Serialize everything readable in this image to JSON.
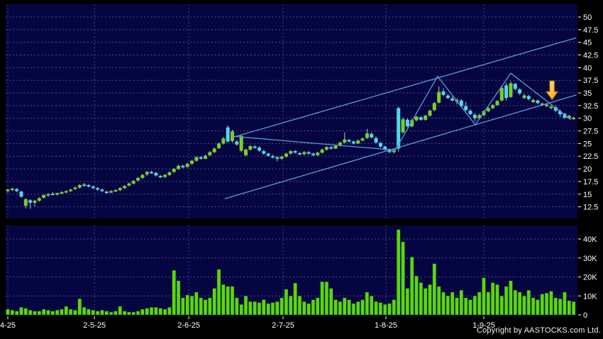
{
  "meta": {
    "copyright": "Copyright by AASTOCKS.com Ltd.",
    "description": "Daily candlestick chart with volume sub-chart"
  },
  "colors": {
    "page_bg": "#000000",
    "panel_bg": "#050542",
    "grid": "#50508c",
    "month_grid": "#45457d",
    "candle_up": "#7ccf23",
    "candle_down": "#4fd8ea",
    "wick": "#c4c4c4",
    "volume_bar": "#5fd414",
    "volume_bar_edge": "#0a4a00",
    "trend_line": "#5b9bd5",
    "axis_text": "#ffffff",
    "arrow_fill_light": "#ffe97a",
    "arrow_fill_dark": "#f09818",
    "arrow_outline": "#7a4a00"
  },
  "chart_data": {
    "type": "candlestick_with_volume",
    "title": "",
    "x_axis": {
      "ticks": [
        {
          "label": "4-25",
          "index": 0
        },
        {
          "label": "2-5-25",
          "index": 19.3
        },
        {
          "label": "2-6-25",
          "index": 40.3
        },
        {
          "label": "2-7-25",
          "index": 61.3
        },
        {
          "label": "1-8-25",
          "index": 84.2
        },
        {
          "label": "1-9-25",
          "index": 106.0
        }
      ]
    },
    "price_axis": {
      "min": 12.5,
      "max": 50,
      "step": 2.5,
      "labels": [
        "50",
        "47.5",
        "45",
        "42.5",
        "40",
        "37.5",
        "35",
        "32.5",
        "30",
        "27.5",
        "25",
        "22.5",
        "20",
        "17.5",
        "15",
        "12.5"
      ]
    },
    "volume_axis": {
      "min": 0,
      "max": 40,
      "step": 10,
      "unit": "K",
      "labels": [
        "40K",
        "30K",
        "20K",
        "10K",
        "0"
      ]
    },
    "grid": "dashed",
    "candles": [
      [
        15.6,
        16.1,
        15.3,
        15.9,
        "g"
      ],
      [
        15.9,
        16.3,
        15.6,
        16.1,
        "g"
      ],
      [
        16.0,
        16.2,
        15.4,
        15.6,
        "c"
      ],
      [
        15.5,
        15.7,
        14.3,
        14.5,
        "c"
      ],
      [
        12.7,
        14.2,
        12.2,
        14.0,
        "g"
      ],
      [
        13.8,
        14.0,
        12.1,
        13.3,
        "c"
      ],
      [
        13.3,
        13.9,
        12.6,
        13.7,
        "g"
      ],
      [
        13.7,
        14.4,
        13.5,
        14.2,
        "g"
      ],
      [
        14.3,
        15.0,
        14.1,
        14.8,
        "g"
      ],
      [
        14.8,
        15.2,
        14.5,
        15.0,
        "g"
      ],
      [
        15.1,
        15.4,
        14.8,
        15.0,
        "c"
      ],
      [
        15.0,
        15.3,
        14.7,
        15.2,
        "g"
      ],
      [
        15.2,
        15.6,
        15.0,
        15.4,
        "g"
      ],
      [
        15.5,
        15.8,
        15.2,
        15.6,
        "g"
      ],
      [
        15.6,
        16.1,
        15.4,
        15.9,
        "g"
      ],
      [
        16.0,
        16.5,
        15.8,
        16.3,
        "g"
      ],
      [
        16.3,
        17.0,
        16.1,
        16.8,
        "g"
      ],
      [
        16.9,
        17.2,
        16.5,
        16.7,
        "c"
      ],
      [
        16.8,
        17.0,
        16.3,
        16.5,
        "c"
      ],
      [
        16.5,
        16.7,
        16.0,
        16.2,
        "c"
      ],
      [
        16.2,
        16.4,
        15.7,
        15.9,
        "c"
      ],
      [
        15.9,
        16.1,
        15.4,
        15.6,
        "c"
      ],
      [
        15.5,
        15.7,
        15.1,
        15.3,
        "c"
      ],
      [
        15.3,
        15.8,
        15.2,
        15.6,
        "g"
      ],
      [
        15.6,
        16.0,
        15.4,
        15.8,
        "g"
      ],
      [
        15.8,
        16.4,
        15.6,
        16.2,
        "g"
      ],
      [
        16.2,
        16.8,
        16.0,
        16.6,
        "g"
      ],
      [
        16.7,
        17.3,
        16.5,
        17.1,
        "g"
      ],
      [
        17.1,
        17.8,
        16.9,
        17.6,
        "g"
      ],
      [
        17.7,
        18.4,
        17.5,
        18.2,
        "g"
      ],
      [
        18.2,
        19.0,
        18.0,
        18.8,
        "g"
      ],
      [
        18.9,
        19.6,
        18.6,
        19.4,
        "g"
      ],
      [
        19.4,
        19.6,
        19.0,
        19.2,
        "c"
      ],
      [
        19.2,
        19.4,
        18.5,
        18.7,
        "c"
      ],
      [
        18.6,
        18.8,
        18.2,
        18.4,
        "c"
      ],
      [
        18.4,
        19.0,
        18.2,
        18.8,
        "g"
      ],
      [
        18.8,
        19.5,
        18.6,
        19.3,
        "g"
      ],
      [
        19.4,
        20.2,
        19.2,
        20.0,
        "g"
      ],
      [
        20.0,
        20.8,
        19.8,
        20.6,
        "g"
      ],
      [
        20.6,
        20.8,
        20.1,
        20.3,
        "c"
      ],
      [
        20.4,
        21.2,
        20.2,
        21.0,
        "g"
      ],
      [
        21.0,
        21.8,
        20.8,
        21.6,
        "g"
      ],
      [
        21.6,
        22.5,
        21.4,
        22.3,
        "g"
      ],
      [
        22.3,
        22.5,
        21.8,
        22.0,
        "c"
      ],
      [
        22.0,
        22.8,
        21.9,
        22.6,
        "g"
      ],
      [
        22.7,
        23.5,
        22.5,
        23.3,
        "g"
      ],
      [
        23.3,
        24.2,
        23.1,
        24.0,
        "g"
      ],
      [
        24.1,
        25.2,
        23.9,
        25.0,
        "g"
      ],
      [
        25.0,
        26.3,
        24.8,
        26.0,
        "g"
      ],
      [
        25.4,
        28.6,
        25.2,
        28.2,
        "c"
      ],
      [
        27.4,
        27.7,
        25.2,
        25.5,
        "g"
      ],
      [
        25.4,
        25.7,
        24.6,
        24.8,
        "c"
      ],
      [
        26.5,
        26.8,
        23.3,
        23.6,
        "g"
      ],
      [
        22.7,
        24.0,
        22.5,
        23.8,
        "g"
      ],
      [
        23.8,
        24.7,
        23.6,
        24.5,
        "g"
      ],
      [
        24.4,
        24.7,
        24.0,
        24.2,
        "c"
      ],
      [
        24.2,
        24.5,
        23.4,
        23.6,
        "c"
      ],
      [
        23.5,
        23.8,
        22.8,
        23.0,
        "c"
      ],
      [
        23.0,
        23.2,
        22.4,
        22.6,
        "c"
      ],
      [
        22.5,
        22.8,
        22.1,
        22.3,
        "c"
      ],
      [
        22.3,
        22.5,
        21.5,
        22.0,
        "c"
      ],
      [
        22.0,
        22.6,
        21.8,
        22.4,
        "g"
      ],
      [
        22.4,
        23.2,
        22.2,
        23.0,
        "g"
      ],
      [
        23.0,
        23.7,
        22.8,
        23.5,
        "g"
      ],
      [
        23.5,
        23.7,
        23.0,
        23.2,
        "c"
      ],
      [
        23.1,
        23.3,
        22.7,
        22.9,
        "c"
      ],
      [
        22.9,
        23.5,
        22.7,
        23.3,
        "g"
      ],
      [
        23.3,
        23.5,
        22.8,
        23.0,
        "c"
      ],
      [
        23.0,
        23.2,
        22.5,
        22.7,
        "c"
      ],
      [
        22.7,
        23.4,
        22.5,
        23.2,
        "g"
      ],
      [
        23.2,
        24.0,
        23.0,
        23.8,
        "g"
      ],
      [
        23.8,
        24.5,
        23.6,
        24.3,
        "g"
      ],
      [
        24.3,
        24.5,
        23.8,
        24.0,
        "c"
      ],
      [
        24.0,
        24.8,
        23.9,
        24.6,
        "g"
      ],
      [
        24.6,
        25.4,
        24.4,
        25.2,
        "g"
      ],
      [
        25.2,
        27.2,
        25.0,
        25.8,
        "g"
      ],
      [
        25.7,
        25.9,
        25.2,
        25.4,
        "c"
      ],
      [
        25.4,
        25.6,
        24.8,
        25.0,
        "c"
      ],
      [
        25.0,
        25.8,
        24.9,
        25.6,
        "g"
      ],
      [
        25.6,
        26.2,
        25.4,
        26.0,
        "g"
      ],
      [
        26.1,
        27.9,
        25.9,
        27.0,
        "g"
      ],
      [
        26.9,
        27.2,
        26.0,
        26.2,
        "c"
      ],
      [
        26.1,
        26.4,
        25.0,
        25.2,
        "c"
      ],
      [
        25.1,
        25.4,
        24.2,
        24.4,
        "c"
      ],
      [
        24.4,
        24.6,
        23.6,
        23.8,
        "c"
      ],
      [
        23.7,
        24.0,
        23.1,
        23.3,
        "c"
      ],
      [
        23.3,
        23.8,
        23.0,
        23.6,
        "g"
      ],
      [
        24.0,
        32.3,
        23.4,
        32.0,
        "c"
      ],
      [
        27.2,
        30.2,
        27.0,
        29.8,
        "g"
      ],
      [
        29.7,
        30.0,
        28.2,
        28.4,
        "c"
      ],
      [
        28.4,
        29.8,
        28.2,
        29.6,
        "g"
      ],
      [
        29.6,
        30.5,
        29.4,
        30.3,
        "g"
      ],
      [
        30.2,
        30.4,
        29.5,
        29.7,
        "c"
      ],
      [
        29.7,
        30.7,
        29.5,
        30.5,
        "g"
      ],
      [
        30.5,
        31.7,
        30.3,
        31.5,
        "g"
      ],
      [
        31.6,
        33.2,
        31.4,
        33.0,
        "g"
      ],
      [
        33.1,
        36.3,
        32.9,
        35.2,
        "g"
      ],
      [
        35.3,
        35.9,
        34.4,
        34.6,
        "c"
      ],
      [
        34.5,
        34.8,
        33.8,
        34.0,
        "c"
      ],
      [
        33.9,
        34.3,
        33.3,
        33.5,
        "c"
      ],
      [
        33.4,
        33.9,
        32.8,
        33.6,
        "g"
      ],
      [
        33.5,
        33.8,
        32.2,
        32.4,
        "c"
      ],
      [
        32.4,
        33.2,
        31.4,
        31.6,
        "c"
      ],
      [
        31.5,
        31.8,
        30.6,
        30.8,
        "c"
      ],
      [
        30.7,
        31.0,
        29.3,
        30.0,
        "c"
      ],
      [
        30.0,
        30.9,
        29.8,
        30.6,
        "g"
      ],
      [
        30.6,
        31.6,
        30.4,
        31.4,
        "g"
      ],
      [
        31.4,
        32.2,
        31.2,
        32.0,
        "g"
      ],
      [
        32.0,
        32.8,
        31.8,
        32.6,
        "g"
      ],
      [
        32.6,
        33.6,
        32.4,
        33.4,
        "g"
      ],
      [
        33.5,
        36.5,
        33.3,
        36.0,
        "g"
      ],
      [
        36.5,
        37.0,
        33.5,
        34.0,
        "c"
      ],
      [
        34.2,
        37.3,
        34.0,
        36.9,
        "g"
      ],
      [
        36.8,
        37.0,
        35.5,
        35.8,
        "c"
      ],
      [
        35.7,
        35.9,
        34.6,
        34.9,
        "c"
      ],
      [
        34.0,
        34.8,
        33.8,
        34.5,
        "g"
      ],
      [
        34.4,
        34.6,
        33.5,
        33.8,
        "c"
      ],
      [
        33.2,
        33.9,
        33.0,
        33.6,
        "g"
      ],
      [
        33.5,
        33.7,
        32.8,
        33.0,
        "c"
      ],
      [
        32.6,
        33.1,
        32.4,
        32.9,
        "g"
      ],
      [
        32.4,
        32.9,
        32.2,
        32.7,
        "g"
      ],
      [
        32.0,
        32.6,
        31.8,
        32.3,
        "g"
      ],
      [
        32.2,
        32.4,
        31.2,
        31.5,
        "c"
      ],
      [
        31.4,
        31.7,
        30.3,
        30.8,
        "c"
      ],
      [
        30.9,
        31.1,
        29.9,
        30.1,
        "c"
      ],
      [
        30.0,
        30.7,
        29.8,
        30.5,
        "g"
      ],
      [
        29.9,
        30.3,
        29.7,
        30.1,
        "g"
      ]
    ],
    "volumes_k": [
      3,
      2.5,
      2,
      4,
      3.5,
      2.5,
      2,
      2,
      3,
      2.5,
      2,
      2.5,
      3,
      4.5,
      3,
      2.5,
      8.5,
      4,
      3,
      2.5,
      2,
      2.5,
      2,
      1.5,
      2,
      4.5,
      2,
      1.5,
      1.5,
      2,
      3,
      3.5,
      4,
      4,
      3.5,
      3,
      4,
      23.5,
      18,
      9,
      10.5,
      10,
      12,
      9,
      8,
      9,
      14,
      24,
      16,
      15,
      15,
      9,
      5.5,
      10,
      7,
      7,
      6.5,
      8,
      6,
      6.5,
      7,
      9,
      13.5,
      10,
      16.8,
      10,
      7,
      6,
      8,
      9,
      17.5,
      17.5,
      14,
      8,
      7,
      9,
      8,
      6,
      7,
      8,
      12,
      10,
      7,
      6.5,
      5.5,
      6,
      8,
      45,
      38.5,
      14,
      30.5,
      20.5,
      17,
      14,
      16,
      27,
      15,
      12,
      10,
      12,
      9,
      13,
      9,
      8,
      10,
      12,
      19.5,
      12,
      17,
      16,
      10,
      15,
      18,
      13,
      12,
      10,
      13,
      9,
      8,
      11,
      11.5,
      12.5,
      9,
      8.5,
      12,
      7.5,
      7
    ],
    "trend_lines": [
      {
        "name": "upper-channel",
        "points": [
          [
            50.0,
            26.2
          ],
          [
            126.6,
            45.9
          ]
        ]
      },
      {
        "name": "lower-channel",
        "points": [
          [
            48.3,
            14.1
          ],
          [
            126.6,
            34.6
          ]
        ]
      },
      {
        "name": "zigzag",
        "points": [
          [
            50.4,
            26.4
          ],
          [
            86.3,
            23.7
          ],
          [
            95.7,
            38.3
          ],
          [
            104.1,
            28.7
          ],
          [
            112.0,
            38.9
          ],
          [
            125.4,
            29.7
          ]
        ]
      }
    ],
    "arrow_annotation": {
      "index": 121.2,
      "price_top": 37.4,
      "price_tip": 33.6,
      "direction": "down"
    }
  }
}
